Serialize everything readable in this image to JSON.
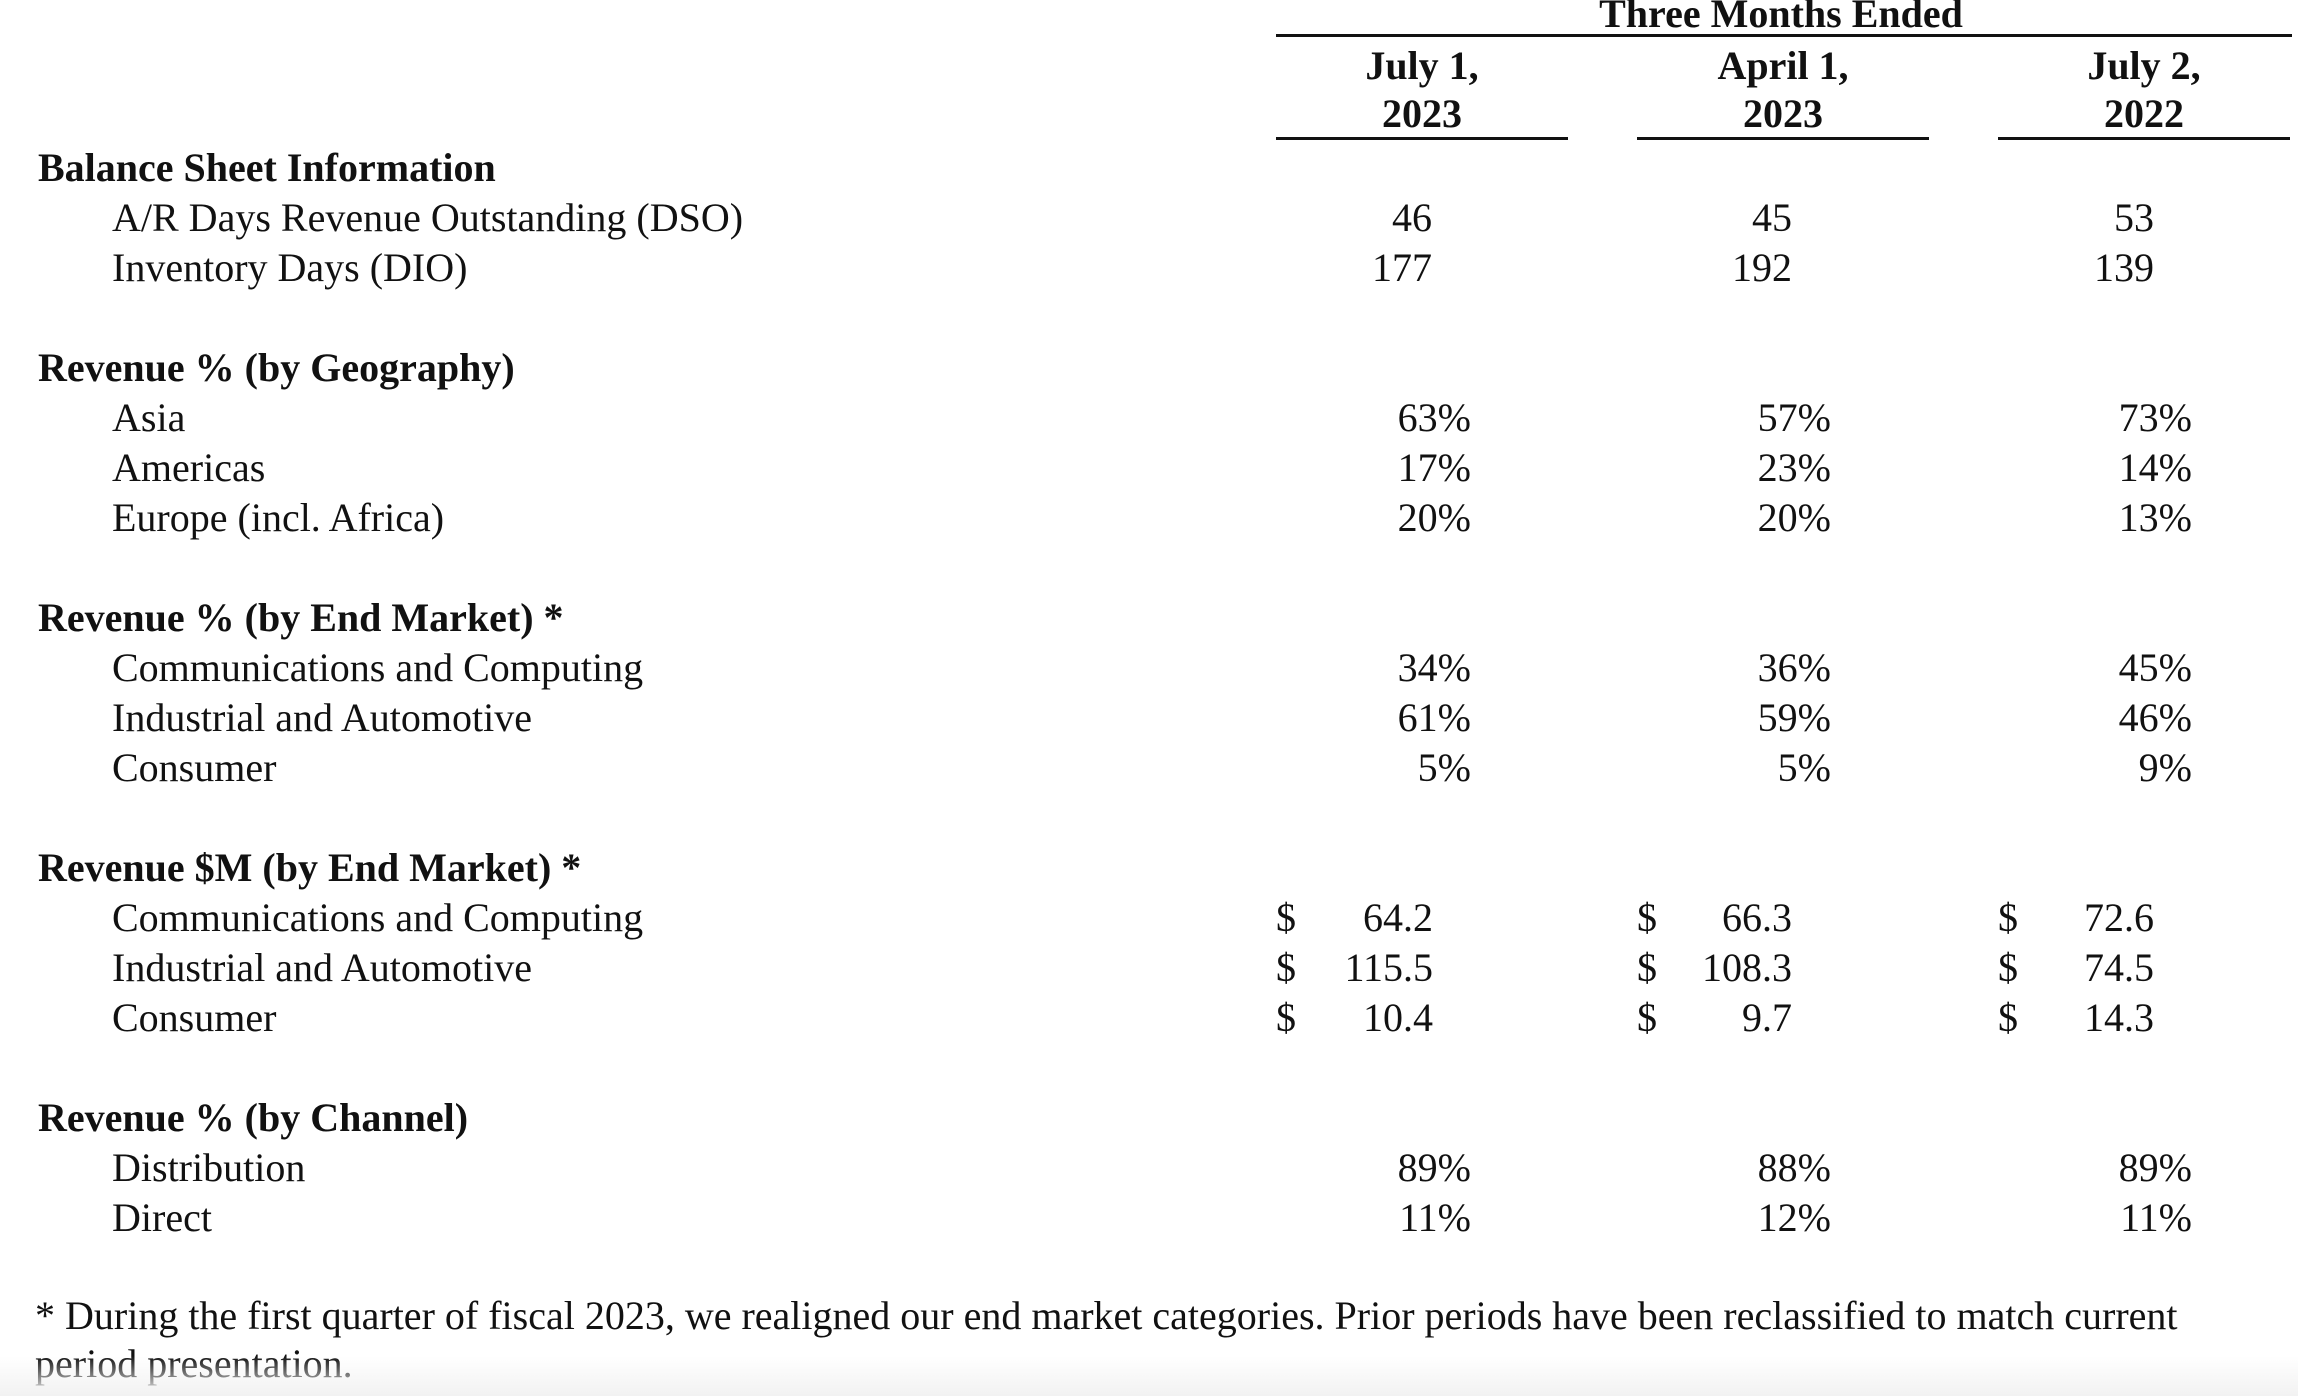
{
  "header": {
    "group_title": "Three Months Ended",
    "columns": [
      {
        "line1": "July 1,",
        "line2": "2023"
      },
      {
        "line1": "April 1,",
        "line2": "2023"
      },
      {
        "line1": "July 2,",
        "line2": "2022"
      }
    ]
  },
  "sections": [
    {
      "title": "Balance Sheet Information",
      "rows": [
        {
          "label": "A/R Days Revenue Outstanding (DSO)",
          "values": [
            "46",
            "45",
            "53"
          ]
        },
        {
          "label": "Inventory Days (DIO)",
          "values": [
            "177",
            "192",
            "139"
          ]
        }
      ]
    },
    {
      "title": "Revenue % (by Geography)",
      "rows": [
        {
          "label": "Asia",
          "values": [
            "63%",
            "57%",
            "73%"
          ]
        },
        {
          "label": "Americas",
          "values": [
            "17%",
            "23%",
            "14%"
          ]
        },
        {
          "label": "Europe (incl. Africa)",
          "values": [
            "20%",
            "20%",
            "13%"
          ]
        }
      ]
    },
    {
      "title": "Revenue % (by End Market) *",
      "rows": [
        {
          "label": "Communications and Computing",
          "values": [
            "34%",
            "36%",
            "45%"
          ]
        },
        {
          "label": "Industrial and Automotive",
          "values": [
            "61%",
            "59%",
            "46%"
          ]
        },
        {
          "label": "Consumer",
          "values": [
            "5%",
            "5%",
            "9%"
          ]
        }
      ]
    },
    {
      "title": "Revenue $M (by End Market) *",
      "currency_symbol": "$",
      "rows": [
        {
          "label": "Communications and Computing",
          "values": [
            "64.2",
            "66.3",
            "72.6"
          ]
        },
        {
          "label": "Industrial and Automotive",
          "values": [
            "115.5",
            "108.3",
            "74.5"
          ]
        },
        {
          "label": "Consumer",
          "values": [
            "10.4",
            "9.7",
            "14.3"
          ]
        }
      ]
    },
    {
      "title": "Revenue % (by Channel)",
      "rows": [
        {
          "label": "Distribution",
          "values": [
            "89%",
            "88%",
            "89%"
          ]
        },
        {
          "label": "Direct",
          "values": [
            "11%",
            "12%",
            "11%"
          ]
        }
      ]
    }
  ],
  "footnote": {
    "line1": "* During the first quarter of fiscal 2023, we realigned our end market categories. Prior periods have been reclassified to match current",
    "line2": "period presentation."
  }
}
